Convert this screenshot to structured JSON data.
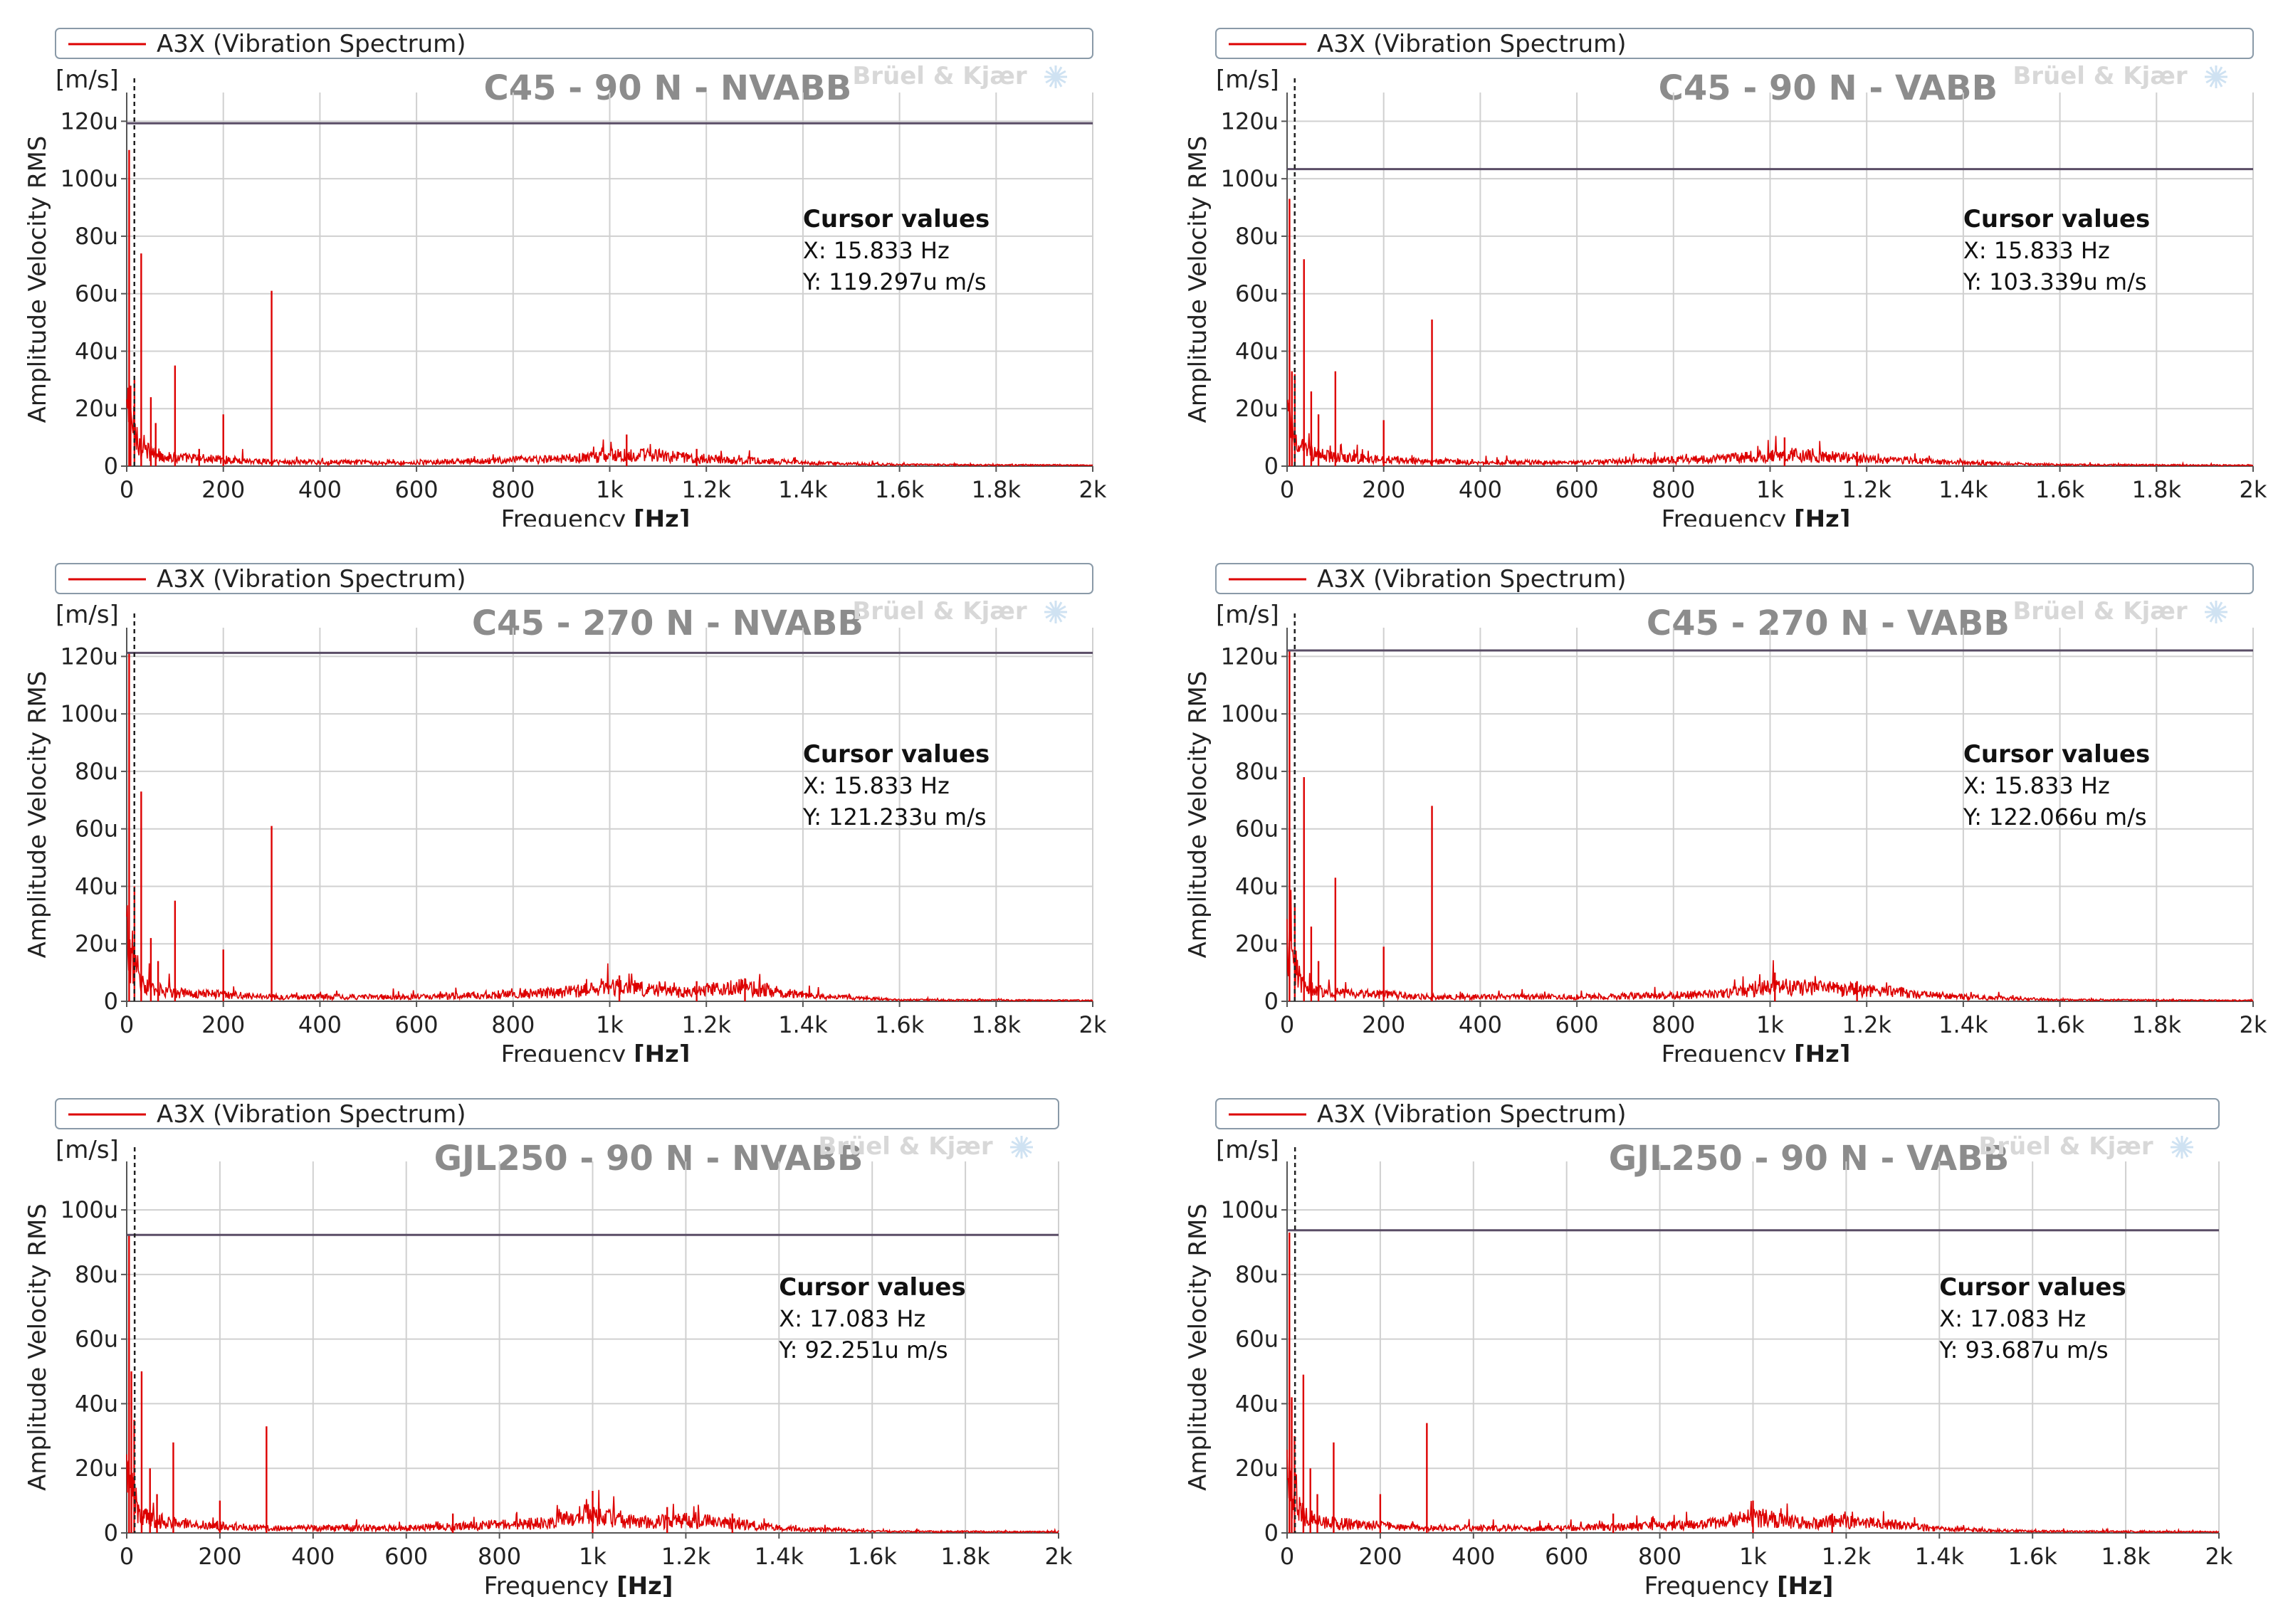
{
  "figure": {
    "series_color": "#dd0000",
    "cursor_line_color": "#5a4d66"
  },
  "chart_data": [
    {
      "type": "line",
      "legend": "A3X (Vibration Spectrum)",
      "title": "C45 - 90 N - NVABB",
      "brand": "Brüel & Kjær",
      "y_unit": "[m/s]",
      "ylabel": "Amplitude  Velocity RMS",
      "xlabel": "Frequency",
      "xlabel_unit": "[Hz]",
      "xlim": [
        0,
        2000
      ],
      "ylim": [
        0,
        130
      ],
      "x_ticks": [
        0,
        200,
        400,
        600,
        800,
        1000,
        1200,
        1400,
        1600,
        1800,
        2000
      ],
      "x_tick_labels": [
        "0",
        "200",
        "400",
        "600",
        "800",
        "1k",
        "1.2k",
        "1.4k",
        "1.6k",
        "1.8k",
        "2k"
      ],
      "y_ticks": [
        0,
        20,
        40,
        60,
        80,
        100,
        120
      ],
      "y_tick_labels": [
        "0",
        "20u",
        "40u",
        "60u",
        "80u",
        "100u",
        "120u"
      ],
      "cursor": {
        "title": "Cursor values",
        "x_text": "X: 15.833 Hz",
        "y_text": "Y: 119.297u m/s",
        "x": 15.833,
        "y": 119.297
      },
      "peaks": [
        [
          5,
          110
        ],
        [
          8,
          28
        ],
        [
          16,
          30
        ],
        [
          30,
          74
        ],
        [
          50,
          24
        ],
        [
          60,
          15
        ],
        [
          100,
          35
        ],
        [
          150,
          6
        ],
        [
          200,
          18
        ],
        [
          300,
          61
        ],
        [
          1035,
          11
        ],
        [
          1180,
          6
        ]
      ],
      "floor": [
        [
          0,
          20
        ],
        [
          30,
          6
        ],
        [
          60,
          4
        ],
        [
          100,
          3
        ],
        [
          300,
          1.5
        ],
        [
          600,
          1.2
        ],
        [
          900,
          2.5
        ],
        [
          1050,
          4
        ],
        [
          1200,
          2.5
        ],
        [
          1400,
          1.2
        ],
        [
          1600,
          0.5
        ],
        [
          2000,
          0.3
        ]
      ]
    },
    {
      "type": "line",
      "legend": "A3X (Vibration Spectrum)",
      "title": "C45 - 90 N - VABB",
      "brand": "Brüel & Kjær",
      "y_unit": "[m/s]",
      "ylabel": "Amplitude  Velocity RMS",
      "xlabel": "Frequency",
      "xlabel_unit": "[Hz]",
      "xlim": [
        0,
        2000
      ],
      "ylim": [
        0,
        130
      ],
      "x_ticks": [
        0,
        200,
        400,
        600,
        800,
        1000,
        1200,
        1400,
        1600,
        1800,
        2000
      ],
      "x_tick_labels": [
        "0",
        "200",
        "400",
        "600",
        "800",
        "1k",
        "1.2k",
        "1.4k",
        "1.6k",
        "1.8k",
        "2k"
      ],
      "y_ticks": [
        0,
        20,
        40,
        60,
        80,
        100,
        120
      ],
      "y_tick_labels": [
        "0",
        "20u",
        "40u",
        "60u",
        "80u",
        "100u",
        "120u"
      ],
      "cursor": {
        "title": "Cursor values",
        "x_text": "X: 15.833 Hz",
        "y_text": "Y: 103.339u m/s",
        "x": 15.833,
        "y": 103.339
      },
      "peaks": [
        [
          5,
          93
        ],
        [
          10,
          33
        ],
        [
          16,
          32
        ],
        [
          35,
          72
        ],
        [
          50,
          26
        ],
        [
          65,
          18
        ],
        [
          100,
          33
        ],
        [
          200,
          16
        ],
        [
          300,
          51
        ],
        [
          1030,
          10
        ],
        [
          1180,
          5
        ]
      ],
      "floor": [
        [
          0,
          18
        ],
        [
          30,
          6
        ],
        [
          60,
          4
        ],
        [
          100,
          3
        ],
        [
          300,
          1.5
        ],
        [
          600,
          1.2
        ],
        [
          900,
          2.5
        ],
        [
          1050,
          4
        ],
        [
          1200,
          2.5
        ],
        [
          1400,
          1.2
        ],
        [
          1600,
          0.5
        ],
        [
          2000,
          0.3
        ]
      ]
    },
    {
      "type": "line",
      "legend": "A3X (Vibration Spectrum)",
      "title": "C45 - 270 N - NVABB",
      "brand": "Brüel & Kjær",
      "y_unit": "[m/s]",
      "ylabel": "Amplitude  Velocity RMS",
      "xlabel": "Frequency",
      "xlabel_unit": "[Hz]",
      "xlim": [
        0,
        2000
      ],
      "ylim": [
        0,
        130
      ],
      "x_ticks": [
        0,
        200,
        400,
        600,
        800,
        1000,
        1200,
        1400,
        1600,
        1800,
        2000
      ],
      "x_tick_labels": [
        "0",
        "200",
        "400",
        "600",
        "800",
        "1k",
        "1.2k",
        "1.4k",
        "1.6k",
        "1.8k",
        "2k"
      ],
      "y_ticks": [
        0,
        20,
        40,
        60,
        80,
        100,
        120
      ],
      "y_tick_labels": [
        "0",
        "20u",
        "40u",
        "60u",
        "80u",
        "100u",
        "120u"
      ],
      "cursor": {
        "title": "Cursor values",
        "x_text": "X: 15.833 Hz",
        "y_text": "Y: 121.233u m/s",
        "x": 15.833,
        "y": 121.233
      },
      "peaks": [
        [
          5,
          121
        ],
        [
          16,
          40
        ],
        [
          30,
          73
        ],
        [
          50,
          22
        ],
        [
          65,
          14
        ],
        [
          100,
          35
        ],
        [
          200,
          18
        ],
        [
          300,
          61
        ],
        [
          1020,
          9
        ],
        [
          1180,
          7
        ],
        [
          1280,
          8
        ]
      ],
      "floor": [
        [
          0,
          22
        ],
        [
          30,
          6
        ],
        [
          60,
          4
        ],
        [
          100,
          3
        ],
        [
          300,
          1.5
        ],
        [
          600,
          1.5
        ],
        [
          900,
          3
        ],
        [
          1020,
          5
        ],
        [
          1150,
          3
        ],
        [
          1280,
          5
        ],
        [
          1400,
          2
        ],
        [
          1600,
          0.5
        ],
        [
          2000,
          0.3
        ]
      ]
    },
    {
      "type": "line",
      "legend": "A3X (Vibration Spectrum)",
      "title": "C45 -  270 N - VABB",
      "brand": "Brüel & Kjær",
      "y_unit": "[m/s]",
      "ylabel": "Amplitude  Velocity RMS",
      "xlabel": "Frequency",
      "xlabel_unit": "[Hz]",
      "xlim": [
        0,
        2000
      ],
      "ylim": [
        0,
        130
      ],
      "x_ticks": [
        0,
        200,
        400,
        600,
        800,
        1000,
        1200,
        1400,
        1600,
        1800,
        2000
      ],
      "x_tick_labels": [
        "0",
        "200",
        "400",
        "600",
        "800",
        "1k",
        "1.2k",
        "1.4k",
        "1.6k",
        "1.8k",
        "2k"
      ],
      "y_ticks": [
        0,
        20,
        40,
        60,
        80,
        100,
        120
      ],
      "y_tick_labels": [
        "0",
        "20u",
        "40u",
        "60u",
        "80u",
        "100u",
        "120u"
      ],
      "cursor": {
        "title": "Cursor values",
        "x_text": "X: 15.833 Hz",
        "y_text": "Y: 122.066u m/s",
        "x": 15.833,
        "y": 122.066
      },
      "peaks": [
        [
          5,
          122
        ],
        [
          16,
          33
        ],
        [
          35,
          78
        ],
        [
          50,
          26
        ],
        [
          65,
          14
        ],
        [
          100,
          43
        ],
        [
          200,
          19
        ],
        [
          300,
          68
        ],
        [
          1010,
          10
        ],
        [
          1180,
          7
        ]
      ],
      "floor": [
        [
          0,
          20
        ],
        [
          30,
          6
        ],
        [
          60,
          4
        ],
        [
          100,
          3
        ],
        [
          300,
          1.5
        ],
        [
          600,
          1.5
        ],
        [
          900,
          2.5
        ],
        [
          1010,
          5
        ],
        [
          1180,
          4
        ],
        [
          1400,
          1.5
        ],
        [
          1600,
          0.5
        ],
        [
          2000,
          0.3
        ]
      ]
    },
    {
      "type": "line",
      "legend": "A3X (Vibration Spectrum)",
      "title": "GJL250 - 90 N - NVABB",
      "brand": "Brüel & Kjær",
      "y_unit": "[m/s]",
      "ylabel": "Amplitude  Velocity RMS",
      "xlabel": "Frequency",
      "xlabel_unit": "[Hz]",
      "xlim": [
        0,
        2000
      ],
      "ylim": [
        0,
        115
      ],
      "x_ticks": [
        0,
        200,
        400,
        600,
        800,
        1000,
        1200,
        1400,
        1600,
        1800,
        2000
      ],
      "x_tick_labels": [
        "0",
        "200",
        "400",
        "600",
        "800",
        "1k",
        "1.2k",
        "1.4k",
        "1.6k",
        "1.8k",
        "2k"
      ],
      "y_ticks": [
        0,
        20,
        40,
        60,
        80,
        100
      ],
      "y_tick_labels": [
        "0",
        "20u",
        "40u",
        "60u",
        "80u",
        "100u"
      ],
      "cursor": {
        "title": "Cursor values",
        "x_text": "X: 17.083 Hz",
        "y_text": "Y: 92.251u m/s",
        "x": 17.083,
        "y": 92.251
      },
      "peaks": [
        [
          5,
          92
        ],
        [
          10,
          50
        ],
        [
          16,
          35
        ],
        [
          32,
          50
        ],
        [
          50,
          20
        ],
        [
          65,
          12
        ],
        [
          100,
          28
        ],
        [
          200,
          10
        ],
        [
          300,
          33
        ],
        [
          700,
          6
        ],
        [
          1000,
          13
        ],
        [
          1160,
          8
        ],
        [
          1300,
          6
        ]
      ],
      "floor": [
        [
          0,
          16
        ],
        [
          30,
          6
        ],
        [
          60,
          4
        ],
        [
          100,
          3
        ],
        [
          300,
          1.5
        ],
        [
          600,
          1.5
        ],
        [
          900,
          3
        ],
        [
          1000,
          6
        ],
        [
          1100,
          3
        ],
        [
          1200,
          4
        ],
        [
          1300,
          3
        ],
        [
          1400,
          1.5
        ],
        [
          1600,
          0.5
        ],
        [
          2000,
          0.3
        ]
      ]
    },
    {
      "type": "line",
      "legend": "A3X (Vibration Spectrum)",
      "title": "GJL250 - 90 N - VABB",
      "brand": "Brüel & Kjær",
      "y_unit": "[m/s]",
      "ylabel": "Amplitude  Velocity RMS",
      "xlabel": "Frequency",
      "xlabel_unit": "[Hz]",
      "xlim": [
        0,
        2000
      ],
      "ylim": [
        0,
        115
      ],
      "x_ticks": [
        0,
        200,
        400,
        600,
        800,
        1000,
        1200,
        1400,
        1600,
        1800,
        2000
      ],
      "x_tick_labels": [
        "0",
        "200",
        "400",
        "600",
        "800",
        "1k",
        "1.2k",
        "1.4k",
        "1.6k",
        "1.8k",
        "2k"
      ],
      "y_ticks": [
        0,
        20,
        40,
        60,
        80,
        100
      ],
      "y_tick_labels": [
        "0",
        "20u",
        "40u",
        "60u",
        "80u",
        "100u"
      ],
      "cursor": {
        "title": "Cursor values",
        "x_text": "X: 17.083 Hz",
        "y_text": "Y: 93.687u m/s",
        "x": 17.083,
        "y": 93.687
      },
      "peaks": [
        [
          5,
          93
        ],
        [
          10,
          42
        ],
        [
          16,
          30
        ],
        [
          35,
          49
        ],
        [
          50,
          20
        ],
        [
          65,
          12
        ],
        [
          100,
          28
        ],
        [
          200,
          12
        ],
        [
          300,
          34
        ],
        [
          700,
          6
        ],
        [
          1000,
          10
        ],
        [
          1170,
          6
        ]
      ],
      "floor": [
        [
          0,
          16
        ],
        [
          30,
          6
        ],
        [
          60,
          4
        ],
        [
          100,
          3
        ],
        [
          300,
          1.5
        ],
        [
          600,
          1.5
        ],
        [
          900,
          2.5
        ],
        [
          1000,
          5
        ],
        [
          1100,
          3
        ],
        [
          1200,
          3.5
        ],
        [
          1300,
          2.5
        ],
        [
          1400,
          1.2
        ],
        [
          1600,
          0.5
        ],
        [
          2000,
          0.3
        ]
      ]
    }
  ]
}
